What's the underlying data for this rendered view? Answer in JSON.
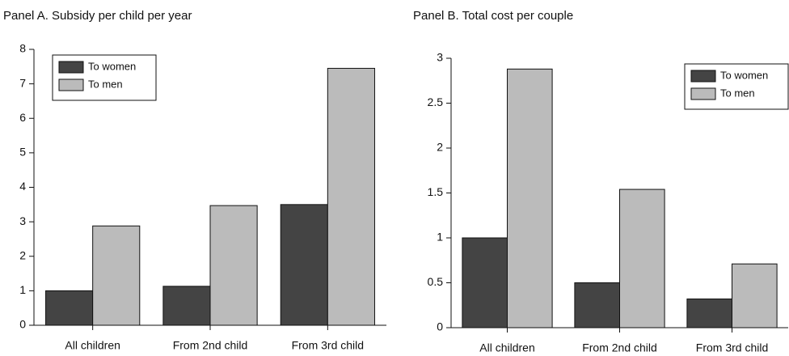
{
  "chart_data": [
    {
      "type": "bar",
      "title": "Panel A. Subsidy per child per year",
      "categories": [
        "All children",
        "From 2nd child",
        "From 3rd child"
      ],
      "series": [
        {
          "name": "To women",
          "color": "#444444",
          "values": [
            1.0,
            1.13,
            3.5
          ]
        },
        {
          "name": "To men",
          "color": "#bbbbbb",
          "values": [
            2.88,
            3.47,
            7.45
          ]
        }
      ],
      "ylim": [
        0,
        8
      ],
      "yticks": [
        0,
        1,
        2,
        3,
        4,
        5,
        6,
        7,
        8
      ],
      "legend": "upper left"
    },
    {
      "type": "bar",
      "title": "Panel B. Total cost per couple",
      "categories": [
        "All children",
        "From 2nd child",
        "From 3rd child"
      ],
      "series": [
        {
          "name": "To women",
          "color": "#444444",
          "values": [
            1.0,
            0.5,
            0.32
          ]
        },
        {
          "name": "To men",
          "color": "#bbbbbb",
          "values": [
            2.88,
            1.54,
            0.71
          ]
        }
      ],
      "ylim": [
        0,
        3
      ],
      "yticks": [
        0,
        0.5,
        1,
        1.5,
        2,
        2.5,
        3
      ],
      "legend": "upper right"
    }
  ]
}
